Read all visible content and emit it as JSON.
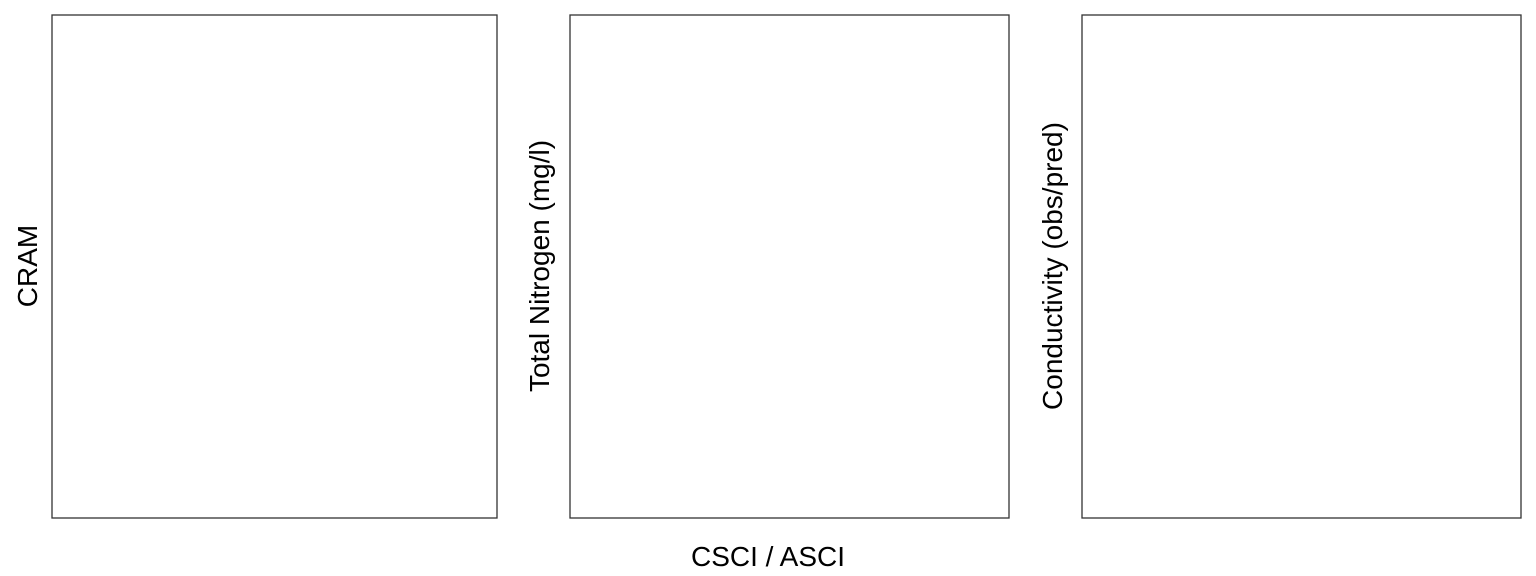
{
  "chart_data": [
    {
      "type": "scatter",
      "title": "",
      "xlabel": "",
      "ylabel": "CRAM",
      "series": []
    },
    {
      "type": "scatter",
      "title": "",
      "xlabel": "",
      "ylabel": "Total Nitrogen (mg/l)",
      "series": []
    },
    {
      "type": "scatter",
      "title": "",
      "xlabel": "",
      "ylabel": "Conductivity (obs/pred)",
      "series": []
    }
  ],
  "shared_xlabel": "CSCI / ASCI",
  "colors": {
    "frame": "#333333",
    "background": "#ffffff"
  }
}
